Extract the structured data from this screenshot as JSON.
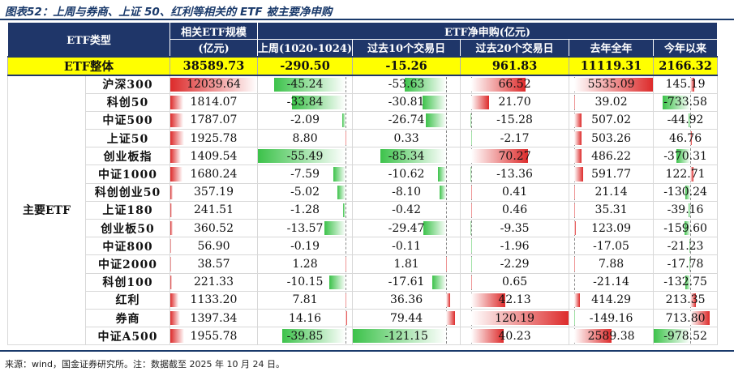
{
  "title": "图表52：上周与券商、上证 50、红利等相关的 ETF 被主要净申购",
  "header": {
    "etf_type": "ETF类型",
    "scale_line1": "相关ETF规模",
    "scale_line2": "(亿元)",
    "flow_group": "ETF净申购(亿元)",
    "col_week": "上周(1020-1024)",
    "col_10d": "过去10个交易日",
    "col_20d": "过去20个交易日",
    "col_lastyear": "去年全年",
    "col_ytd": "今年以来"
  },
  "total_row": {
    "label": "ETF整体",
    "scale": "38589.73",
    "week": "-290.50",
    "d10": "-15.26",
    "d20": "961.83",
    "lastyear": "11119.31",
    "ytd": "2166.32"
  },
  "group_label": "主要ETF",
  "colors": {
    "header_bg": "#1f3669",
    "total_bg": "#ffff00",
    "pos_bar": "#dd2b2b",
    "neg_bar": "#3cc24a"
  },
  "rows": [
    {
      "name": "沪深300",
      "scale": "12039.64",
      "week": "-45.24",
      "d10": "-53.63",
      "d20": "66.52",
      "lastyear": "5535.09",
      "ytd": "145.19"
    },
    {
      "name": "科创50",
      "scale": "1814.07",
      "week": "-33.84",
      "d10": "-30.81",
      "d20": "21.70",
      "lastyear": "39.02",
      "ytd": "-733.58"
    },
    {
      "name": "中证500",
      "scale": "1787.07",
      "week": "-2.09",
      "d10": "-26.74",
      "d20": "-15.28",
      "lastyear": "507.02",
      "ytd": "-44.92"
    },
    {
      "name": "上证50",
      "scale": "1925.78",
      "week": "8.80",
      "d10": "0.33",
      "d20": "-2.17",
      "lastyear": "503.26",
      "ytd": "46.76"
    },
    {
      "name": "创业板指",
      "scale": "1409.54",
      "week": "-55.49",
      "d10": "-85.34",
      "d20": "70.27",
      "lastyear": "486.22",
      "ytd": "-370.31"
    },
    {
      "name": "中证1000",
      "scale": "1680.24",
      "week": "-7.59",
      "d10": "-10.62",
      "d20": "-13.36",
      "lastyear": "591.77",
      "ytd": "122.71"
    },
    {
      "name": "科创创业50",
      "scale": "357.19",
      "week": "-5.02",
      "d10": "-8.10",
      "d20": "0.41",
      "lastyear": "21.14",
      "ytd": "-130.24"
    },
    {
      "name": "上证180",
      "scale": "241.51",
      "week": "-1.28",
      "d10": "-0.42",
      "d20": "0.46",
      "lastyear": "35.31",
      "ytd": "-39.16"
    },
    {
      "name": "创业板50",
      "scale": "360.52",
      "week": "-13.57",
      "d10": "-29.47",
      "d20": "-9.35",
      "lastyear": "123.09",
      "ytd": "-159.60"
    },
    {
      "name": "中证800",
      "scale": "56.90",
      "week": "-0.19",
      "d10": "-0.11",
      "d20": "-1.96",
      "lastyear": "-17.05",
      "ytd": "-21.23"
    },
    {
      "name": "中证2000",
      "scale": "38.57",
      "week": "1.28",
      "d10": "1.81",
      "d20": "-2.29",
      "lastyear": "7.88",
      "ytd": "-17.78"
    },
    {
      "name": "科创100",
      "scale": "221.33",
      "week": "-10.15",
      "d10": "-17.61",
      "d20": "0.65",
      "lastyear": "-21.14",
      "ytd": "-132.75"
    },
    {
      "name": "红利",
      "scale": "1133.20",
      "week": "7.81",
      "d10": "36.36",
      "d20": "42.13",
      "lastyear": "414.29",
      "ytd": "213.35"
    },
    {
      "name": "券商",
      "scale": "1397.34",
      "week": "14.16",
      "d10": "79.44",
      "d20": "120.19",
      "lastyear": "-149.16",
      "ytd": "713.80"
    },
    {
      "name": "中证A500",
      "scale": "1955.78",
      "week": "-39.85",
      "d10": "-121.15",
      "d20": "40.23",
      "lastyear": "2589.38",
      "ytd": "-978.52"
    }
  ],
  "footer": "来源：wind，国金证券研究所。注：数据截至 2025 年 10 月 24 日。"
}
